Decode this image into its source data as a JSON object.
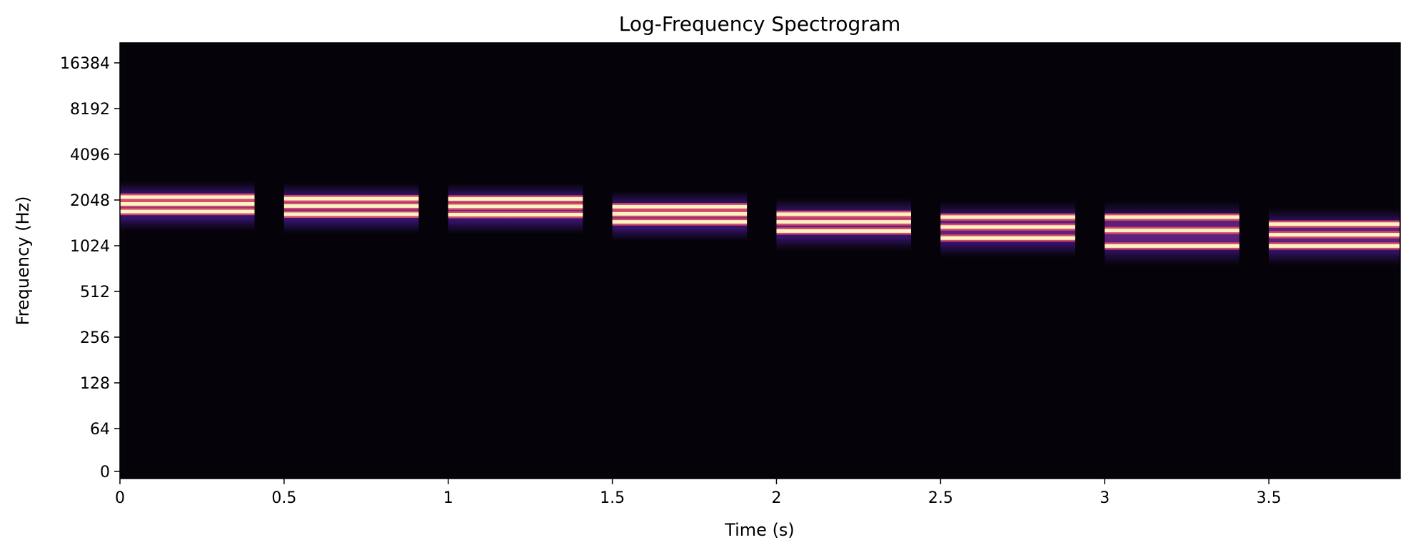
{
  "chart_data": {
    "type": "heatmap",
    "title": "Log-Frequency Spectrogram",
    "xlabel": "Time (s)",
    "ylabel": "Frequency (Hz)",
    "xlim": [
      0,
      3.9
    ],
    "ylim": [
      0,
      22050
    ],
    "y_scale": "log2 (symlog near 0)",
    "colormap": "magma",
    "background_color": "#050309",
    "grid": false,
    "legend": "none",
    "x_ticks": [
      {
        "value": 0,
        "label": "0"
      },
      {
        "value": 0.5,
        "label": "0.5"
      },
      {
        "value": 1,
        "label": "1"
      },
      {
        "value": 1.5,
        "label": "1.5"
      },
      {
        "value": 2,
        "label": "2"
      },
      {
        "value": 2.5,
        "label": "2.5"
      },
      {
        "value": 3,
        "label": "3"
      },
      {
        "value": 3.5,
        "label": "3.5"
      }
    ],
    "y_ticks": [
      {
        "value": 0,
        "label": "0"
      },
      {
        "value": 64,
        "label": "64"
      },
      {
        "value": 128,
        "label": "128"
      },
      {
        "value": 256,
        "label": "256"
      },
      {
        "value": 512,
        "label": "512"
      },
      {
        "value": 1024,
        "label": "1024"
      },
      {
        "value": 2048,
        "label": "2048"
      },
      {
        "value": 4096,
        "label": "4096"
      },
      {
        "value": 8192,
        "label": "8192"
      },
      {
        "value": 16384,
        "label": "16384"
      }
    ],
    "notes": [
      {
        "start": 0.0,
        "end": 0.41,
        "harmonics_hz": [
          1720,
          1930,
          2140
        ]
      },
      {
        "start": 0.5,
        "end": 0.91,
        "harmonics_hz": [
          1650,
          1870,
          2090
        ]
      },
      {
        "start": 1.0,
        "end": 1.41,
        "harmonics_hz": [
          1640,
          1860,
          2080
        ]
      },
      {
        "start": 1.5,
        "end": 1.91,
        "harmonics_hz": [
          1470,
          1660,
          1850
        ]
      },
      {
        "start": 2.0,
        "end": 2.41,
        "harmonics_hz": [
          1280,
          1470,
          1650
        ]
      },
      {
        "start": 2.5,
        "end": 2.91,
        "harmonics_hz": [
          1150,
          1360,
          1580
        ]
      },
      {
        "start": 3.0,
        "end": 3.41,
        "harmonics_hz": [
          1020,
          1290,
          1580
        ]
      },
      {
        "start": 3.5,
        "end": 3.9,
        "harmonics_hz": [
          1020,
          1210,
          1420
        ]
      }
    ]
  }
}
